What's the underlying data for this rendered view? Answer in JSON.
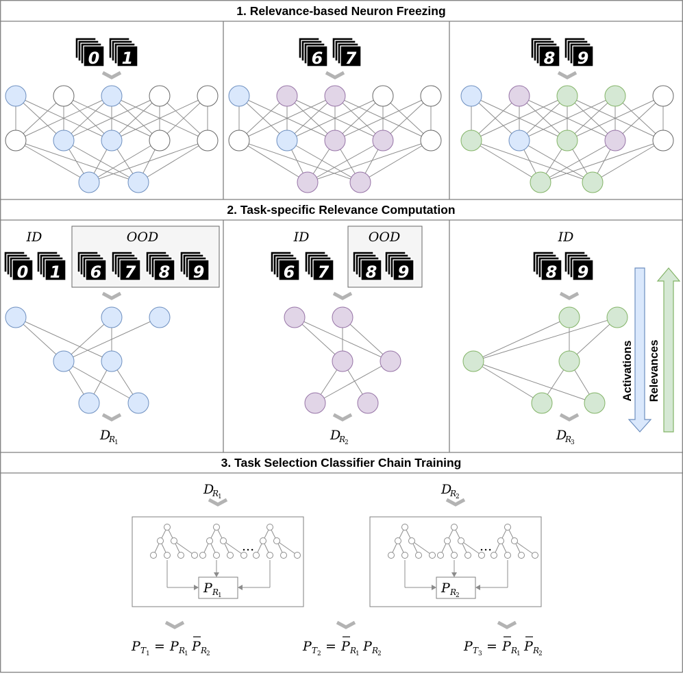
{
  "sections": [
    {
      "title": "1. Relevance-based Neuron Freezing"
    },
    {
      "title": "2. Task-specific Relevance Computation"
    },
    {
      "title": "3. Task Selection Classifier Chain Training"
    }
  ],
  "tasks": [
    {
      "digits": [
        "0",
        "1"
      ],
      "ood": [
        "6",
        "7",
        "8",
        "9"
      ],
      "relevance": {
        "base": "D",
        "sub": "R",
        "idx": "1"
      }
    },
    {
      "digits": [
        "6",
        "7"
      ],
      "ood": [
        "8",
        "9"
      ],
      "relevance": {
        "base": "D",
        "sub": "R",
        "idx": "2"
      }
    },
    {
      "digits": [
        "8",
        "9"
      ],
      "ood": [],
      "relevance": {
        "base": "D",
        "sub": "R",
        "idx": "3"
      }
    }
  ],
  "labels": {
    "id": "ID",
    "ood": "OOD",
    "activations": "Activations",
    "relevances": "Relevances",
    "ellipsis": "..."
  },
  "classifiers": [
    {
      "input": {
        "base": "D",
        "sub": "R",
        "idx": "1"
      },
      "output": {
        "base": "P",
        "sub": "R",
        "idx": "1"
      }
    },
    {
      "input": {
        "base": "D",
        "sub": "R",
        "idx": "2"
      },
      "output": {
        "base": "P",
        "sub": "R",
        "idx": "2"
      }
    }
  ],
  "formulas": [
    {
      "lhs_idx": "1",
      "rhs": [
        {
          "bar": false,
          "idx": "1"
        },
        {
          "bar": true,
          "idx": "2"
        }
      ]
    },
    {
      "lhs_idx": "2",
      "rhs": [
        {
          "bar": true,
          "idx": "1"
        },
        {
          "bar": false,
          "idx": "2"
        }
      ]
    },
    {
      "lhs_idx": "3",
      "rhs": [
        {
          "bar": true,
          "idx": "1"
        },
        {
          "bar": true,
          "idx": "2"
        }
      ]
    }
  ],
  "colors": {
    "task1_fill": "#dae8fc",
    "task1_stroke": "#6c8ebf",
    "task2_fill": "#e1d5e7",
    "task2_stroke": "#9673a6",
    "task3_fill": "#d5e8d4",
    "task3_stroke": "#82b366",
    "empty_fill": "#ffffff",
    "empty_stroke": "#666666",
    "chevron": "#b3b3b3",
    "edge": "#8c8c8c"
  }
}
